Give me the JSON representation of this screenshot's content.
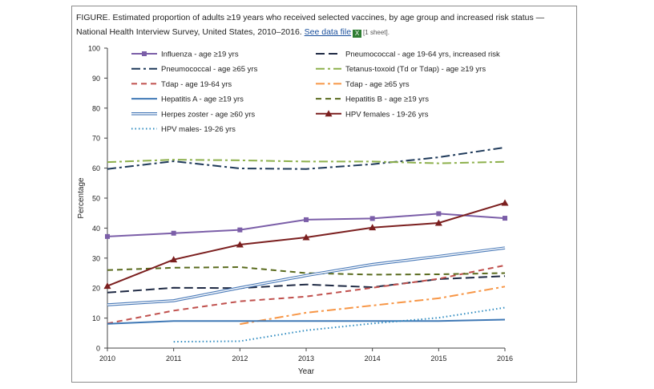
{
  "caption": {
    "text": "FIGURE. Estimated proportion of adults ≥19 years who received selected vaccines, by age group and increased risk status — National Health Interview Survey, United States, 2010–2016.",
    "link_text": "See data file",
    "icon": "excel-file-icon",
    "sheet_text": "[1 sheet]."
  },
  "chart_data": {
    "type": "line",
    "title": "",
    "xlabel": "Year",
    "ylabel": "Percentage",
    "ylim": [
      0,
      100
    ],
    "yticks": [
      0,
      10,
      20,
      30,
      40,
      50,
      60,
      70,
      80,
      90,
      100
    ],
    "x": [
      2010,
      2011,
      2012,
      2013,
      2014,
      2015,
      2016
    ],
    "grid": false,
    "legend_position": "top-left",
    "series": [
      {
        "name": "Influenza - age ≥19 yrs",
        "color": "#7b5ea8",
        "style": "solid",
        "marker": "square",
        "values": [
          37.2,
          38.3,
          39.4,
          42.8,
          43.2,
          44.8,
          43.3
        ]
      },
      {
        "name": "Pneumococcal - age 19-64 yrs, increased risk",
        "color": "#1f2a44",
        "style": "longdash",
        "marker": "none",
        "values": [
          18.5,
          20.1,
          20.0,
          21.2,
          20.3,
          23.0,
          24.0
        ]
      },
      {
        "name": "Pneumococcal - age ≥65 yrs",
        "color": "#1f3a5a",
        "style": "dashdot",
        "marker": "none",
        "values": [
          59.7,
          62.3,
          59.9,
          59.7,
          61.3,
          63.6,
          66.9
        ]
      },
      {
        "name": "Tetanus-toxoid (Td or Tdap) - age ≥19 yrs",
        "color": "#8db04c",
        "style": "dashdot",
        "marker": "none",
        "values": [
          62.0,
          62.8,
          62.6,
          62.2,
          62.2,
          61.6,
          62.1
        ]
      },
      {
        "name": "Tdap - age 19-64 yrs",
        "color": "#c0504d",
        "style": "dash",
        "marker": "none",
        "values": [
          8.2,
          12.5,
          15.6,
          17.2,
          20.1,
          23.1,
          27.6
        ]
      },
      {
        "name": "Tdap - age ≥65 yrs",
        "color": "#f79646",
        "style": "dashdot",
        "marker": "none",
        "values": [
          null,
          null,
          8.0,
          11.8,
          14.2,
          16.6,
          20.5
        ]
      },
      {
        "name": "Hepatitis A - age ≥19 yrs",
        "color": "#3f78b5",
        "style": "solid",
        "marker": "none",
        "values": [
          8.1,
          9.0,
          9.0,
          9.0,
          9.0,
          9.0,
          9.5
        ]
      },
      {
        "name": "Hepatitis B - age ≥19 yrs",
        "color": "#5a6b1e",
        "style": "dash",
        "marker": "none",
        "values": [
          26.0,
          26.8,
          27.0,
          25.0,
          24.5,
          24.6,
          25.0
        ]
      },
      {
        "name": "Herpes zoster - age ≥60 yrs",
        "color": "#4a7ab8",
        "style": "double",
        "marker": "none",
        "values": [
          14.4,
          15.8,
          20.1,
          24.2,
          27.9,
          30.6,
          33.4
        ]
      },
      {
        "name": "HPV females - 19-26 yrs",
        "color": "#7b1f1f",
        "style": "solid",
        "marker": "triangle",
        "values": [
          20.7,
          29.5,
          34.5,
          36.9,
          40.2,
          41.7,
          48.4
        ]
      },
      {
        "name": "HPV males- 19-26 yrs",
        "color": "#2e8bc0",
        "style": "dotted",
        "marker": "none",
        "values": [
          null,
          2.1,
          2.3,
          5.9,
          8.2,
          10.1,
          13.5
        ]
      }
    ]
  }
}
